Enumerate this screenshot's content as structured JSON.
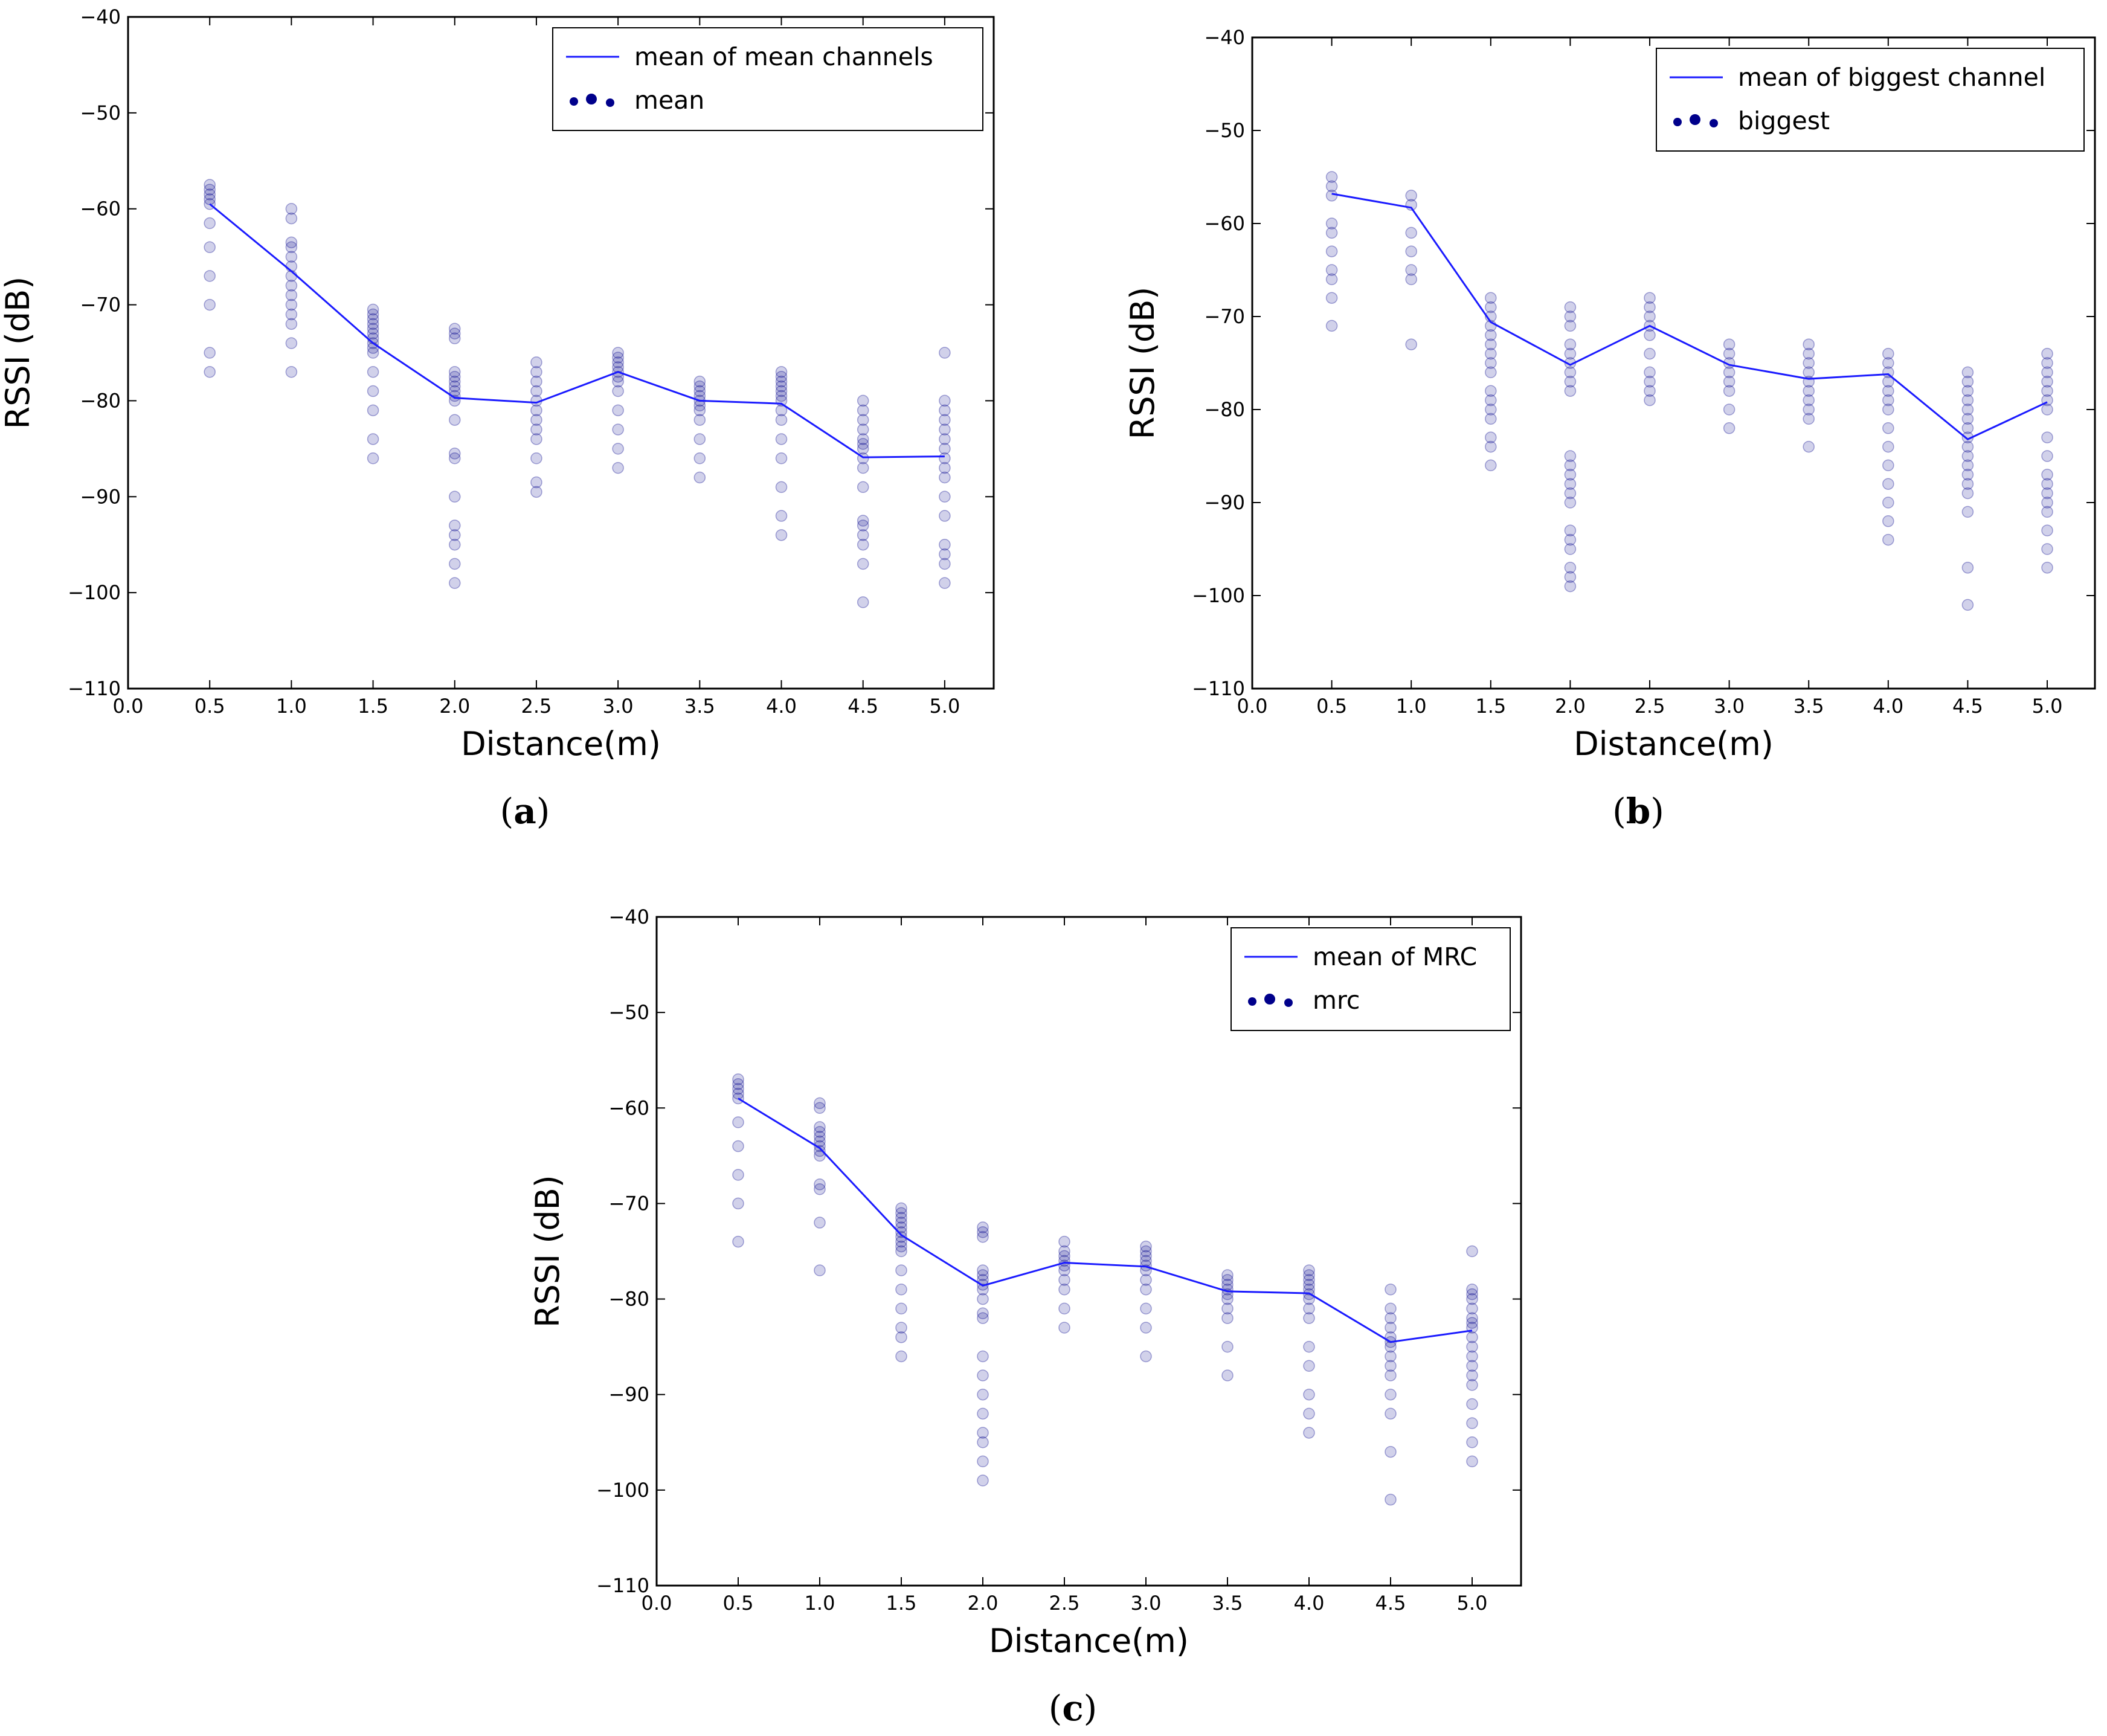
{
  "colors": {
    "series": "#1a1aff",
    "points": "#00008b",
    "frame": "#000000"
  },
  "chart_data": [
    {
      "id": "a",
      "type": "scatter",
      "caption": {
        "open": "(",
        "letter": "a",
        "close": ")"
      },
      "xlabel": "Distance(m)",
      "ylabel": "RSSI (dB)",
      "xlim": [
        0,
        5.3
      ],
      "ylim": [
        -110,
        -40
      ],
      "xticks": [
        "0.0",
        "0.5",
        "1.0",
        "1.5",
        "2.0",
        "2.5",
        "3.0",
        "3.5",
        "4.0",
        "4.5",
        "5.0"
      ],
      "yticks": [
        "−40",
        "−50",
        "−60",
        "−70",
        "−80",
        "−90",
        "−100",
        "−110"
      ],
      "legend": {
        "line_label": "mean of mean channels",
        "scatter_label": "mean",
        "position": "top-right"
      },
      "mean_line": {
        "x": [
          0.5,
          1.0,
          1.5,
          2.0,
          2.5,
          3.0,
          3.5,
          4.0,
          4.5,
          5.0
        ],
        "y": [
          -59.5,
          -66.5,
          -74,
          -79.7,
          -80.2,
          -77,
          -80,
          -80.3,
          -85.9,
          -85.8
        ]
      },
      "points": [
        {
          "x": 0.5,
          "y": [
            -57.5,
            -58,
            -58.5,
            -59,
            -59.5,
            -61.5,
            -64,
            -67,
            -70,
            -75,
            -77
          ]
        },
        {
          "x": 1.0,
          "y": [
            -60,
            -61,
            -63.5,
            -64,
            -65,
            -66,
            -67,
            -68,
            -69,
            -70,
            -71,
            -72,
            -74,
            -77
          ]
        },
        {
          "x": 1.5,
          "y": [
            -70.5,
            -71,
            -71.5,
            -72,
            -72.5,
            -73,
            -73.5,
            -74,
            -74.5,
            -75,
            -77,
            -79,
            -81,
            -84,
            -86
          ]
        },
        {
          "x": 2.0,
          "y": [
            -72.5,
            -73,
            -73.5,
            -77,
            -77.5,
            -78,
            -78.5,
            -79,
            -79.5,
            -80,
            -82,
            -85.5,
            -86,
            -90,
            -93,
            -94,
            -95,
            -97,
            -99
          ]
        },
        {
          "x": 2.5,
          "y": [
            -76,
            -77,
            -78,
            -79,
            -80,
            -81,
            -82,
            -83,
            -84,
            -86,
            -88.5,
            -89.5
          ]
        },
        {
          "x": 3.0,
          "y": [
            -75,
            -75.5,
            -76,
            -76.5,
            -77,
            -77.5,
            -78,
            -79,
            -81,
            -83,
            -85,
            -87
          ]
        },
        {
          "x": 3.5,
          "y": [
            -78,
            -78.5,
            -79,
            -79.5,
            -80,
            -80.5,
            -81,
            -82,
            -84,
            -86,
            -88
          ]
        },
        {
          "x": 4.0,
          "y": [
            -77,
            -77.5,
            -78,
            -78.5,
            -79,
            -79.5,
            -80,
            -81,
            -82,
            -84,
            -86,
            -89,
            -92,
            -94
          ]
        },
        {
          "x": 4.5,
          "y": [
            -80,
            -81,
            -82,
            -83,
            -84,
            -84.5,
            -85,
            -86,
            -87,
            -89,
            -92.5,
            -93,
            -94,
            -95,
            -97,
            -101
          ]
        },
        {
          "x": 5.0,
          "y": [
            -75,
            -80,
            -81,
            -82,
            -83,
            -84,
            -85,
            -86,
            -87,
            -88,
            -90,
            -92,
            -95,
            -96,
            -97,
            -99
          ]
        }
      ]
    },
    {
      "id": "b",
      "type": "scatter",
      "caption": {
        "open": "(",
        "letter": "b",
        "close": ")"
      },
      "xlabel": "Distance(m)",
      "ylabel": "RSSI (dB)",
      "xlim": [
        0,
        5.3
      ],
      "ylim": [
        -110,
        -40
      ],
      "xticks": [
        "0.0",
        "0.5",
        "1.0",
        "1.5",
        "2.0",
        "2.5",
        "3.0",
        "3.5",
        "4.0",
        "4.5",
        "5.0"
      ],
      "yticks": [
        "−40",
        "−50",
        "−60",
        "−70",
        "−80",
        "−90",
        "−100",
        "−110"
      ],
      "legend": {
        "line_label": "mean of biggest channel",
        "scatter_label": "biggest",
        "position": "top-right"
      },
      "mean_line": {
        "x": [
          0.5,
          1.0,
          1.5,
          2.0,
          2.5,
          3.0,
          3.5,
          4.0,
          4.5,
          5.0
        ],
        "y": [
          -56.8,
          -58.3,
          -70.6,
          -75.2,
          -71,
          -75.2,
          -76.7,
          -76.2,
          -83.2,
          -79.2
        ]
      },
      "points": [
        {
          "x": 0.5,
          "y": [
            -55,
            -56,
            -57,
            -60,
            -61,
            -63,
            -65,
            -66,
            -68,
            -71
          ]
        },
        {
          "x": 1.0,
          "y": [
            -57,
            -58,
            -61,
            -63,
            -65,
            -66,
            -73
          ]
        },
        {
          "x": 1.5,
          "y": [
            -68,
            -69,
            -70,
            -71,
            -72,
            -73,
            -74,
            -75,
            -76,
            -78,
            -79,
            -80,
            -81,
            -83,
            -84,
            -86
          ]
        },
        {
          "x": 2.0,
          "y": [
            -69,
            -70,
            -71,
            -73,
            -74,
            -75,
            -76,
            -77,
            -78,
            -85,
            -86,
            -87,
            -88,
            -89,
            -90,
            -93,
            -94,
            -95,
            -97,
            -98,
            -99
          ]
        },
        {
          "x": 2.5,
          "y": [
            -68,
            -69,
            -70,
            -71,
            -72,
            -74,
            -76,
            -77,
            -78,
            -79
          ]
        },
        {
          "x": 3.0,
          "y": [
            -73,
            -74,
            -75,
            -76,
            -77,
            -78,
            -80,
            -82
          ]
        },
        {
          "x": 3.5,
          "y": [
            -73,
            -74,
            -75,
            -76,
            -77,
            -78,
            -79,
            -80,
            -81,
            -84
          ]
        },
        {
          "x": 4.0,
          "y": [
            -74,
            -75,
            -76,
            -77,
            -78,
            -79,
            -80,
            -82,
            -84,
            -86,
            -88,
            -90,
            -92,
            -94
          ]
        },
        {
          "x": 4.5,
          "y": [
            -76,
            -77,
            -78,
            -79,
            -80,
            -81,
            -82,
            -83,
            -84,
            -85,
            -86,
            -87,
            -88,
            -89,
            -91,
            -97,
            -101
          ]
        },
        {
          "x": 5.0,
          "y": [
            -74,
            -75,
            -76,
            -77,
            -78,
            -79,
            -80,
            -83,
            -85,
            -87,
            -88,
            -89,
            -90,
            -91,
            -93,
            -95,
            -97
          ]
        }
      ]
    },
    {
      "id": "c",
      "type": "scatter",
      "caption": {
        "open": "(",
        "letter": "c",
        "close": ")"
      },
      "xlabel": "Distance(m)",
      "ylabel": "RSSI (dB)",
      "xlim": [
        0,
        5.3
      ],
      "ylim": [
        -110,
        -40
      ],
      "xticks": [
        "0.0",
        "0.5",
        "1.0",
        "1.5",
        "2.0",
        "2.5",
        "3.0",
        "3.5",
        "4.0",
        "4.5",
        "5.0"
      ],
      "yticks": [
        "−40",
        "−50",
        "−60",
        "−70",
        "−80",
        "−90",
        "−100",
        "−110"
      ],
      "legend": {
        "line_label": "mean of MRC",
        "scatter_label": "mrc",
        "position": "top-right"
      },
      "mean_line": {
        "x": [
          0.5,
          1.0,
          1.5,
          2.0,
          2.5,
          3.0,
          3.5,
          4.0,
          4.5,
          5.0
        ],
        "y": [
          -59,
          -64.2,
          -73.3,
          -78.6,
          -76.2,
          -76.6,
          -79.2,
          -79.4,
          -84.5,
          -83.3
        ]
      },
      "points": [
        {
          "x": 0.5,
          "y": [
            -57,
            -57.5,
            -58,
            -58.5,
            -59,
            -61.5,
            -64,
            -67,
            -70,
            -74
          ]
        },
        {
          "x": 1.0,
          "y": [
            -59.5,
            -60,
            -62,
            -62.5,
            -63,
            -63.5,
            -64,
            -64.5,
            -65,
            -68,
            -68.5,
            -72,
            -77
          ]
        },
        {
          "x": 1.5,
          "y": [
            -70.5,
            -71,
            -71.5,
            -72,
            -72.5,
            -73,
            -73.5,
            -74,
            -74.5,
            -75,
            -77,
            -79,
            -81,
            -83,
            -84,
            -86
          ]
        },
        {
          "x": 2.0,
          "y": [
            -72.5,
            -73,
            -73.5,
            -77,
            -77.5,
            -78,
            -78.5,
            -79,
            -80,
            -81.5,
            -82,
            -86,
            -88,
            -90,
            -92,
            -94,
            -95,
            -97,
            -99
          ]
        },
        {
          "x": 2.5,
          "y": [
            -74,
            -75,
            -75.5,
            -76,
            -76.5,
            -77,
            -78,
            -79,
            -81,
            -83
          ]
        },
        {
          "x": 3.0,
          "y": [
            -74.5,
            -75,
            -75.5,
            -76,
            -76.5,
            -77,
            -78,
            -79,
            -81,
            -83,
            -86
          ]
        },
        {
          "x": 3.5,
          "y": [
            -77.5,
            -78,
            -78.5,
            -79,
            -79.5,
            -80,
            -81,
            -82,
            -85,
            -88
          ]
        },
        {
          "x": 4.0,
          "y": [
            -77,
            -77.5,
            -78,
            -78.5,
            -79,
            -79.5,
            -80,
            -81,
            -82,
            -85,
            -87,
            -90,
            -92,
            -94
          ]
        },
        {
          "x": 4.5,
          "y": [
            -79,
            -81,
            -82,
            -83,
            -84,
            -84.5,
            -85,
            -86,
            -87,
            -88,
            -90,
            -92,
            -96,
            -101
          ]
        },
        {
          "x": 5.0,
          "y": [
            -75,
            -79,
            -79.5,
            -80,
            -81,
            -82,
            -82.5,
            -83,
            -84,
            -85,
            -86,
            -87,
            -88,
            -89,
            -91,
            -93,
            -95,
            -97
          ]
        }
      ]
    }
  ]
}
